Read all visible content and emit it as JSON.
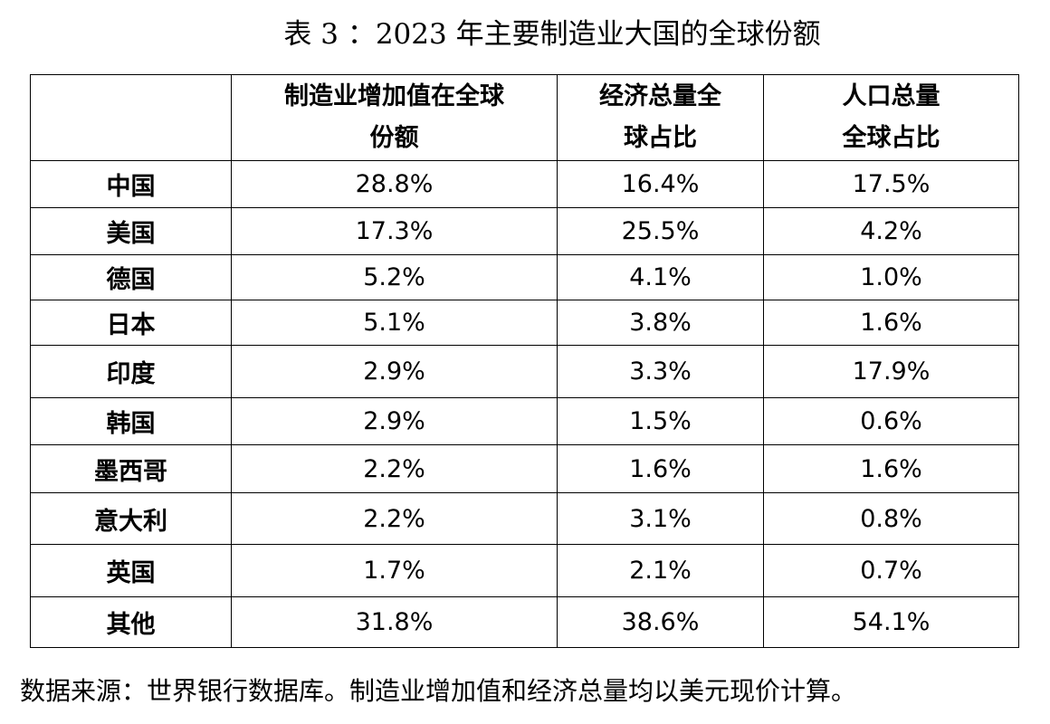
{
  "title": "表 3 ：2023 年主要制造业大国的全球份额",
  "table": {
    "header": [
      [
        "制造业增加值在全球",
        "份额"
      ],
      [
        "经济总量全",
        "球占比"
      ],
      [
        "人口总量",
        "全球占比"
      ]
    ],
    "rows": [
      [
        "中国",
        "28.8%",
        "16.4%",
        "17.5%"
      ],
      [
        "美国",
        "17.3%",
        "25.5%",
        "4.2%"
      ],
      [
        "德国",
        "5.2%",
        "4.1%",
        "1.0%"
      ],
      [
        "日本",
        "5.1%",
        "3.8%",
        "1.6%"
      ],
      [
        "印度",
        "2.9%",
        "3.3%",
        "17.9%"
      ],
      [
        "韩国",
        "2.9%",
        "1.5%",
        "0.6%"
      ],
      [
        "墨西哥",
        "2.2%",
        "1.6%",
        "1.6%"
      ],
      [
        "意大利",
        "2.2%",
        "3.1%",
        "0.8%"
      ],
      [
        "英国",
        "1.7%",
        "2.1%",
        "0.7%"
      ],
      [
        "其他",
        "31.8%",
        "38.6%",
        "54.1%"
      ]
    ]
  },
  "note": "数据来源：世界银行数据库。制造业增加值和经济总量均以美元现价计算。"
}
